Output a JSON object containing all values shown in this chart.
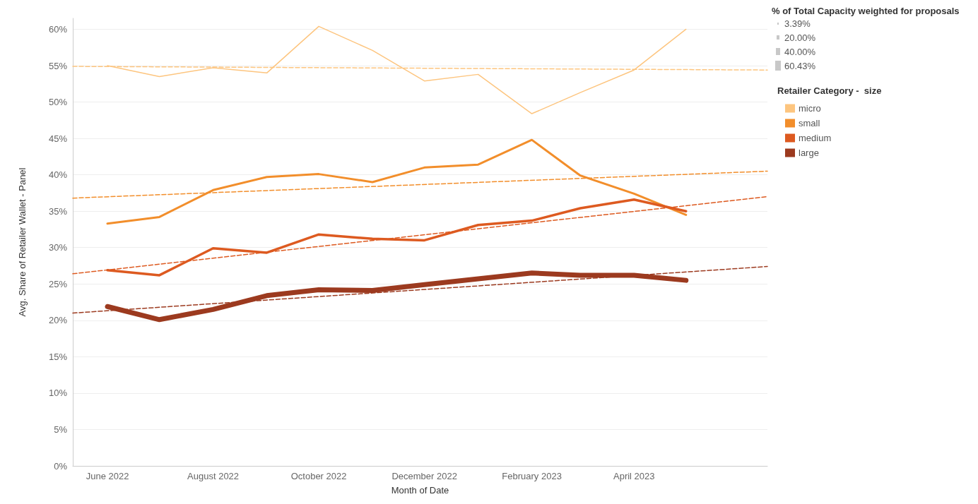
{
  "chart_data": {
    "type": "line",
    "xlabel": "Month of Date",
    "ylabel": "Avg. Share of Retailer Wallet - Panel",
    "legend_title": "Retailer Category -  size",
    "legend": "top right",
    "grid": "y",
    "marker": "none",
    "line_style": "solid",
    "annotations": [
      "% of Total Capacity weighted for proposals",
      "3.39%",
      "20.00%",
      "40.00%",
      "60.43%"
    ],
    "x": [
      "2022-06",
      "2022-07",
      "2022-08",
      "2022-09",
      "2022-10",
      "2022-11",
      "2022-12",
      "2023-01",
      "2023-02",
      "2023-03",
      "2023-04",
      "2023-05"
    ],
    "xlim": [
      "2022-05-12",
      "2023-06-17"
    ],
    "xticks": [
      {
        "value": "2022-06",
        "label": "June 2022"
      },
      {
        "value": "2022-08",
        "label": "August 2022"
      },
      {
        "value": "2022-10",
        "label": "October 2022"
      },
      {
        "value": "2022-12",
        "label": "December 2022"
      },
      {
        "value": "2023-02",
        "label": "February 2023"
      },
      {
        "value": "2023-04",
        "label": "April 2023"
      }
    ],
    "ylim": [
      0,
      61.5
    ],
    "yticks": [
      {
        "value": 0,
        "label": "0%"
      },
      {
        "value": 5,
        "label": "5%"
      },
      {
        "value": 10,
        "label": "10%"
      },
      {
        "value": 15,
        "label": "15%"
      },
      {
        "value": 20,
        "label": "20%"
      },
      {
        "value": 25,
        "label": "25%"
      },
      {
        "value": 30,
        "label": "30%"
      },
      {
        "value": 35,
        "label": "35%"
      },
      {
        "value": 40,
        "label": "40%"
      },
      {
        "value": 45,
        "label": "45%"
      },
      {
        "value": 50,
        "label": "50%"
      },
      {
        "value": 55,
        "label": "55%"
      },
      {
        "value": 60,
        "label": "60%"
      }
    ],
    "series": [
      {
        "name": "micro",
        "color": "#fdc57f",
        "values": [
          55.0,
          53.5,
          54.7,
          54.0,
          60.4,
          57.1,
          52.9,
          53.8,
          48.4,
          51.3,
          54.4,
          60.0
        ]
      },
      {
        "name": "small",
        "color": "#f28e2b",
        "values": [
          33.3,
          34.2,
          37.9,
          39.7,
          40.1,
          39.0,
          41.0,
          41.4,
          44.8,
          39.9,
          37.4,
          34.5
        ]
      },
      {
        "name": "medium",
        "color": "#dd5a20",
        "values": [
          26.9,
          26.2,
          29.9,
          29.3,
          31.8,
          31.2,
          31.0,
          33.1,
          33.7,
          35.4,
          36.6,
          35.0
        ]
      },
      {
        "name": "large",
        "color": "#9c3a1f",
        "values": [
          21.9,
          20.1,
          21.5,
          23.4,
          24.2,
          24.1,
          24.9,
          25.7,
          26.5,
          26.2,
          26.2,
          25.5
        ]
      },
      {
        "type": "line",
        "color": "#fdc57f",
        "line_style": "dashed",
        "x": [
          "2022-05-12",
          "2023-06-17"
        ],
        "values": [
          54.9,
          54.4
        ]
      },
      {
        "type": "line",
        "color": "#f28e2b",
        "line_style": "dashed",
        "x": [
          "2022-05-12",
          "2023-06-17"
        ],
        "values": [
          36.8,
          40.5
        ]
      },
      {
        "type": "line",
        "color": "#dd5a20",
        "line_style": "dashed",
        "x": [
          "2022-05-12",
          "2023-06-17"
        ],
        "values": [
          26.4,
          37.0
        ]
      },
      {
        "type": "line",
        "color": "#9c3a1f",
        "line_style": "dashed",
        "x": [
          "2022-05-12",
          "2023-06-17"
        ],
        "values": [
          21.0,
          27.4
        ]
      }
    ]
  }
}
